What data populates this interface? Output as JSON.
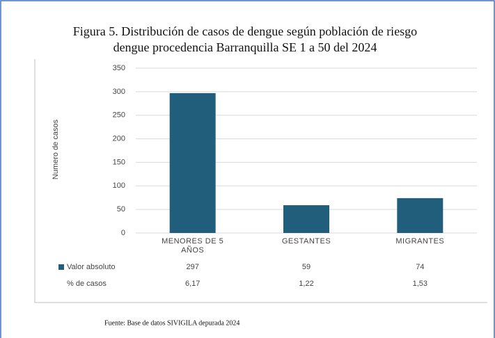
{
  "chart_data": {
    "type": "bar",
    "title": [
      "Figura 5. Distribución de casos de dengue según población de riesgo",
      "dengue procedencia Barranquilla SE 1 a 50 del 2024"
    ],
    "y_label": "Numero de casos",
    "categories": [
      "MENORES DE 5 AÑOS",
      "GESTANTES",
      "MIGRANTES"
    ],
    "series": [
      {
        "name": "Valor absoluto",
        "color": "#215e7c",
        "values": [
          297,
          59,
          74
        ]
      },
      {
        "name": "% de casos",
        "values": [
          6.17,
          1.22,
          1.53
        ],
        "value_labels": [
          "6,17",
          "1,22",
          "1,53"
        ]
      }
    ],
    "ylim": [
      0,
      350
    ],
    "yticks": [
      0,
      50,
      100,
      150,
      200,
      250,
      300,
      350
    ],
    "grid": true,
    "source": "Fuente: Base de datos SIVIGILA depurada 2024"
  }
}
